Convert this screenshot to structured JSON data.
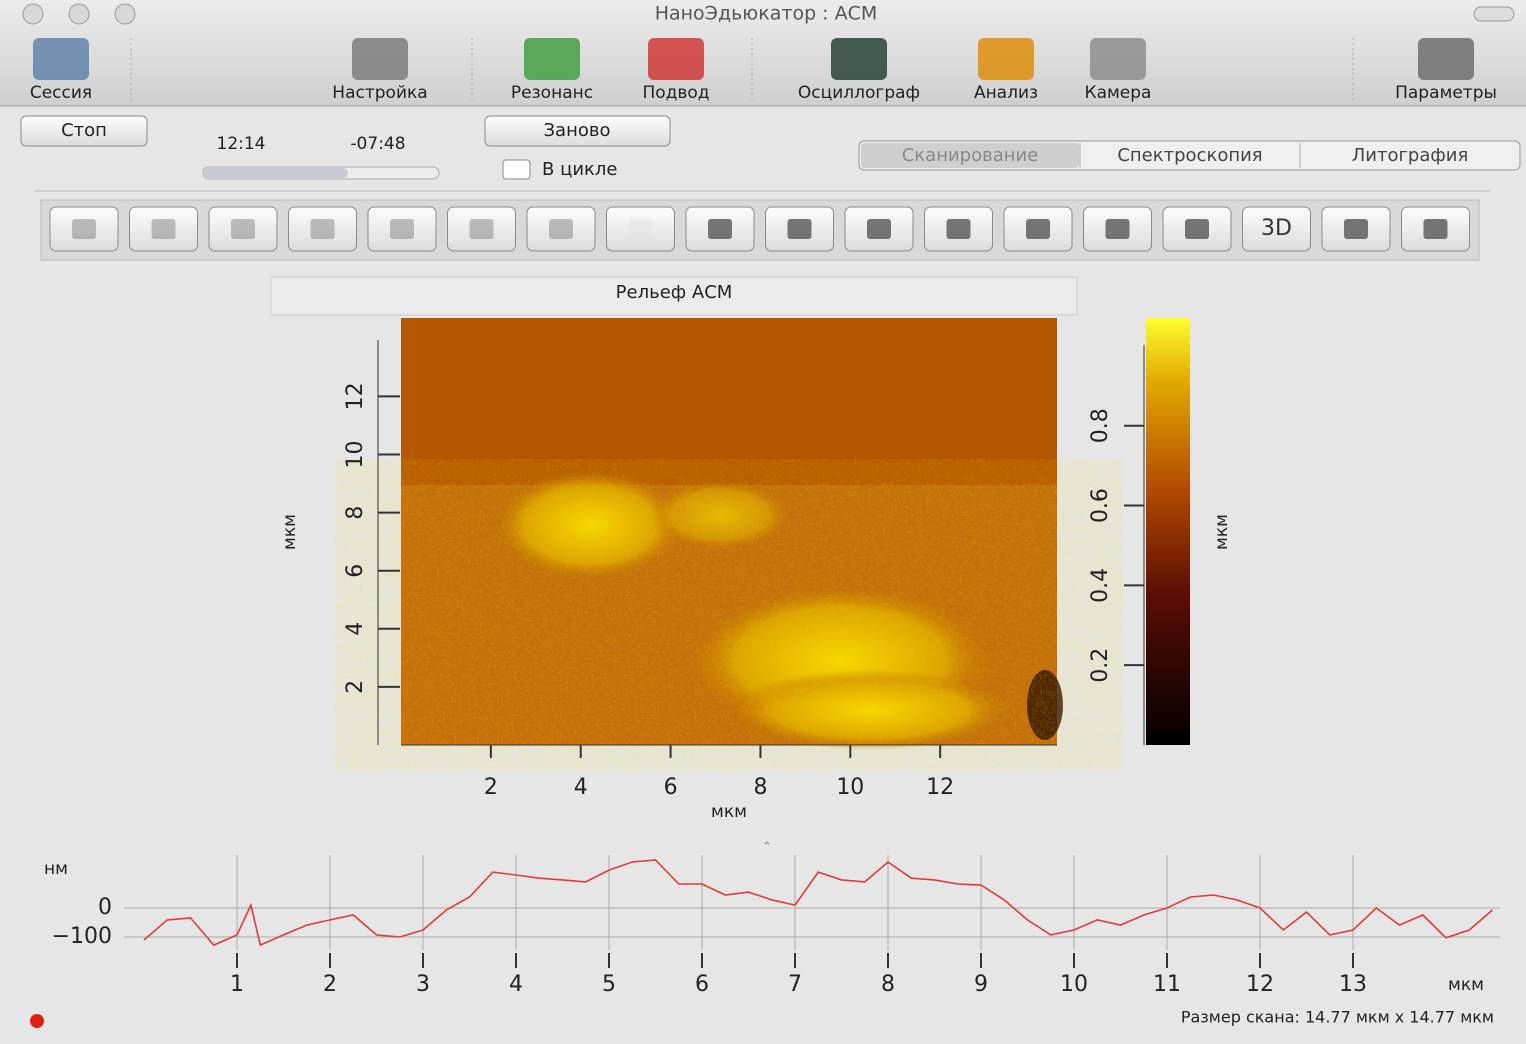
{
  "window": {
    "title": "НаноЭдьюкатор : АСМ"
  },
  "toolbar": {
    "items": [
      "Сессия",
      "Настройка",
      "Резонанс",
      "Подвод",
      "Осциллограф",
      "Анализ",
      "Камера",
      "Параметры"
    ]
  },
  "controls": {
    "stop": "Стоп",
    "elapsed": "12:14",
    "remaining": "-07:48",
    "restart": "Заново",
    "loop": "В цикле",
    "tabs": [
      "Сканирование",
      "Спектроскопия",
      "Литография"
    ]
  },
  "tools": {
    "label_3d": "3D"
  },
  "image_panel": {
    "title": "Рельеф АСМ",
    "x_label": "мкм",
    "y_label": "мкм",
    "xlim": [
      0,
      14.6
    ],
    "xticks": [
      2,
      4,
      6,
      8,
      10,
      12
    ],
    "ylim": [
      0,
      14.7
    ],
    "yticks": [
      2,
      4,
      6,
      8,
      10,
      12
    ],
    "colorbar": {
      "label": "мкм",
      "lim": [
        0,
        1.07
      ],
      "ticks": [
        0.2,
        0.4,
        0.6,
        0.8
      ]
    }
  },
  "chart_data": {
    "type": "line",
    "y_label": "нм",
    "x_label": "мкм",
    "color": "#e03a3a",
    "xlim": [
      0,
      14.6
    ],
    "xticks": [
      1,
      2,
      3,
      4,
      5,
      6,
      7,
      8,
      9,
      10,
      11,
      12,
      13
    ],
    "ylim": [
      -145,
      183
    ],
    "yticks": [
      0,
      {
        "value": -100,
        "label": "−100"
      }
    ],
    "grid": true,
    "x": [
      0,
      0.25,
      0.5,
      0.75,
      1.0,
      1.15,
      1.25,
      1.5,
      1.75,
      2.0,
      2.25,
      2.5,
      2.75,
      3.0,
      3.25,
      3.5,
      3.75,
      4.0,
      4.25,
      4.5,
      4.75,
      5.0,
      5.25,
      5.5,
      5.75,
      6.0,
      6.25,
      6.5,
      6.75,
      7.0,
      7.25,
      7.5,
      7.75,
      8.0,
      8.25,
      8.5,
      8.75,
      9.0,
      9.25,
      9.5,
      9.75,
      10.0,
      10.25,
      10.5,
      10.75,
      11.0,
      11.25,
      11.5,
      11.75,
      12.0,
      12.25,
      12.5,
      12.75,
      13.0,
      13.25,
      13.5,
      13.75,
      14.0,
      14.25,
      14.5
    ],
    "values": [
      -110,
      -41,
      -34,
      -128,
      -93,
      10,
      -128,
      -93,
      -59,
      -41,
      -24,
      -93,
      -100,
      -76,
      -7,
      38,
      124,
      114,
      103,
      97,
      90,
      131,
      159,
      166,
      83,
      83,
      45,
      55,
      28,
      10,
      124,
      97,
      90,
      159,
      103,
      97,
      83,
      79,
      28,
      -41,
      -93,
      -76,
      -41,
      -59,
      -24,
      0,
      38,
      45,
      28,
      0,
      -76,
      -14,
      -93,
      -76,
      0,
      -59,
      -24,
      -103,
      -76,
      -7
    ]
  },
  "status": {
    "scan_size": "Размер скана: 14.77 мкм x 14.77 мкм"
  }
}
